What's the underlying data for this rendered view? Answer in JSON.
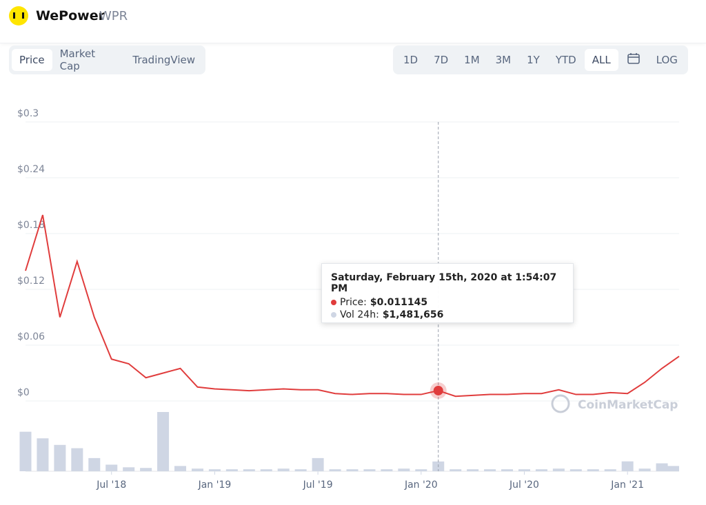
{
  "header": {
    "name": "WePower",
    "symbol": "WPR"
  },
  "tabs": [
    "Price",
    "Market Cap",
    "TradingView"
  ],
  "active_tab": "Price",
  "ranges": [
    "1D",
    "7D",
    "1M",
    "3M",
    "1Y",
    "YTD",
    "ALL"
  ],
  "active_range": "ALL",
  "log_button": "LOG",
  "watermark": "CoinMarketCap",
  "tooltip": {
    "date": "Saturday, February 15th, 2020 at 1:54:07 PM",
    "price_label": "Price:",
    "price": "$0.011145",
    "volume_label": "Vol 24h:",
    "volume": "$1,481,656"
  },
  "chart_data": {
    "type": "line",
    "x": [
      "2018-02",
      "2018-03",
      "2018-04",
      "2018-05",
      "2018-06",
      "2018-07",
      "2018-08",
      "2018-09",
      "2018-10",
      "2018-11",
      "2018-12",
      "2019-01",
      "2019-02",
      "2019-03",
      "2019-04",
      "2019-05",
      "2019-06",
      "2019-07",
      "2019-08",
      "2019-09",
      "2019-10",
      "2019-11",
      "2019-12",
      "2020-01",
      "2020-02",
      "2020-03",
      "2020-04",
      "2020-05",
      "2020-06",
      "2020-07",
      "2020-08",
      "2020-09",
      "2020-10",
      "2020-11",
      "2020-12",
      "2021-01",
      "2021-02",
      "2021-03",
      "2021-04"
    ],
    "series": [
      {
        "name": "Price",
        "color": "#e03c3c",
        "values": [
          0.14,
          0.2,
          0.09,
          0.15,
          0.09,
          0.045,
          0.04,
          0.025,
          0.03,
          0.035,
          0.015,
          0.013,
          0.012,
          0.011,
          0.012,
          0.013,
          0.012,
          0.012,
          0.008,
          0.007,
          0.008,
          0.008,
          0.007,
          0.007,
          0.011145,
          0.005,
          0.006,
          0.007,
          0.007,
          0.008,
          0.008,
          0.012,
          0.007,
          0.007,
          0.009,
          0.008,
          0.02,
          0.035,
          0.048
        ]
      },
      {
        "name": "Vol 24h",
        "color": "#cfd6e4",
        "values": [
          6000000,
          5000000,
          4000000,
          3500000,
          2000000,
          1000000,
          600000,
          500000,
          9000000,
          800000,
          400000,
          300000,
          300000,
          300000,
          300000,
          400000,
          300000,
          2000000,
          300000,
          300000,
          300000,
          300000,
          400000,
          300000,
          1481656,
          300000,
          300000,
          300000,
          300000,
          300000,
          300000,
          400000,
          300000,
          300000,
          300000,
          1500000,
          400000,
          1200000,
          800000
        ]
      }
    ],
    "xlim": [
      "2018-02",
      "2021-04"
    ],
    "xticks": [
      {
        "value": "2018-07",
        "label": "Jul '18"
      },
      {
        "value": "2019-01",
        "label": "Jan '19"
      },
      {
        "value": "2019-07",
        "label": "Jul '19"
      },
      {
        "value": "2020-01",
        "label": "Jan '20"
      },
      {
        "value": "2020-07",
        "label": "Jul '20"
      },
      {
        "value": "2021-01",
        "label": "Jan '21"
      }
    ],
    "ylim": [
      0,
      0.3
    ],
    "yticks": [
      {
        "value": 0,
        "label": "$0"
      },
      {
        "value": 0.06,
        "label": "$0.06"
      },
      {
        "value": 0.12,
        "label": "$0.12"
      },
      {
        "value": 0.18,
        "label": "$0.18"
      },
      {
        "value": 0.24,
        "label": "$0.24"
      },
      {
        "value": 0.3,
        "label": "$0.3"
      }
    ],
    "grid": true,
    "highlight": "2020-02"
  }
}
